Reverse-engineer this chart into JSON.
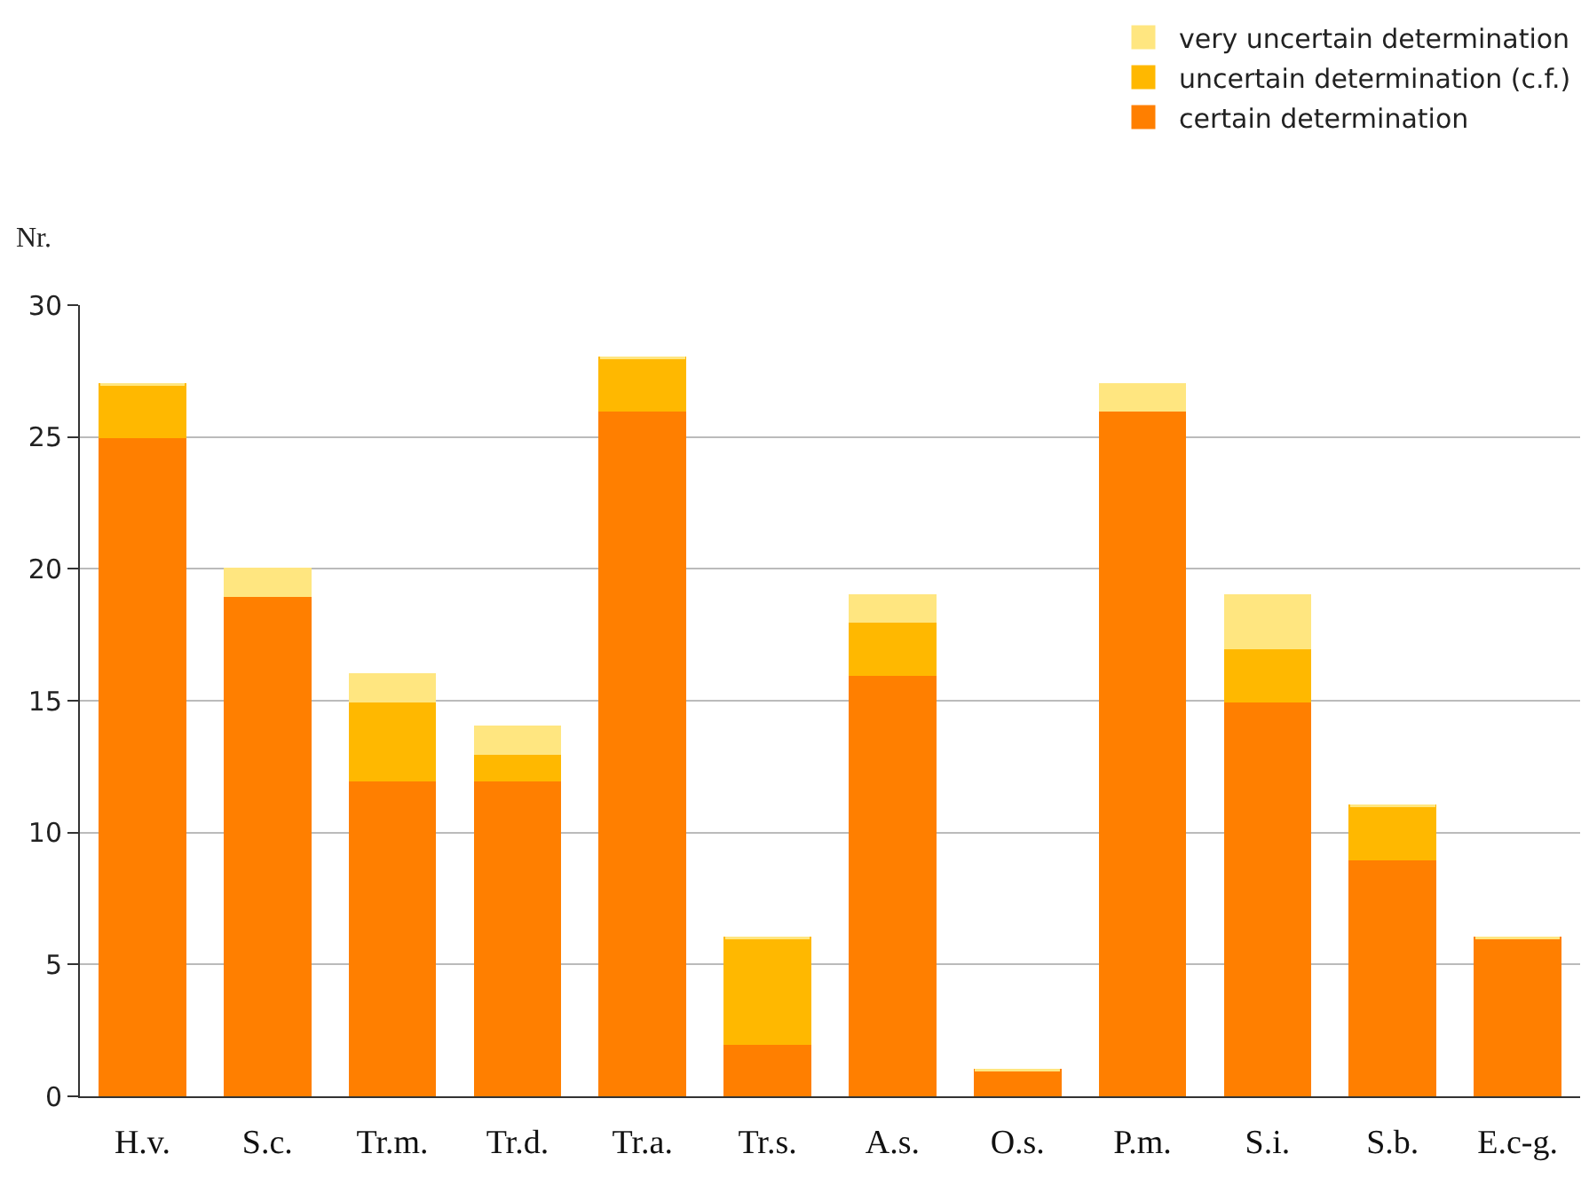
{
  "chart_data": {
    "type": "bar",
    "stacked": true,
    "ylabel": "Nr.",
    "categories": [
      "H.v.",
      "S.c.",
      "Tr.m.",
      "Tr.d.",
      "Tr.a.",
      "Tr.s.",
      "A.s.",
      "O.s.",
      "P.m.",
      "S.i.",
      "S.b.",
      "E.c-g."
    ],
    "series": [
      {
        "name": "certain determination",
        "color": "#ff7f00",
        "values": [
          25,
          19,
          12,
          12,
          26,
          2,
          16,
          1,
          26,
          15,
          9,
          6
        ]
      },
      {
        "name": "uncertain determination (c.f.)",
        "color": "#ffb800",
        "values": [
          2,
          0,
          3,
          1,
          2,
          4,
          2,
          0,
          0,
          2,
          2,
          0
        ]
      },
      {
        "name": "very uncertain determination",
        "color": "#ffe680",
        "values": [
          0,
          1,
          1,
          1,
          0,
          0,
          1,
          0,
          1,
          2,
          0,
          0
        ]
      }
    ],
    "ylim": [
      0,
      30
    ],
    "yticks": [
      0,
      5,
      10,
      15,
      20,
      25,
      30
    ],
    "grid": "y",
    "legend": "top right"
  }
}
